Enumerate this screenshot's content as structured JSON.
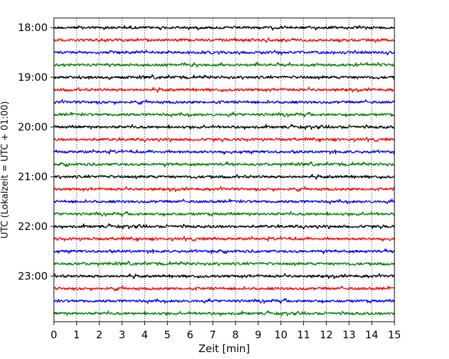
{
  "chart_data": {
    "type": "line",
    "title": "",
    "xlabel": "Zeit  [min]",
    "ylabel": "UTC (Lokalzeit = UTC + 01:00)",
    "xlim": [
      0,
      15
    ],
    "x_ticks": [
      "0",
      "1",
      "2",
      "3",
      "4",
      "5",
      "6",
      "7",
      "8",
      "9",
      "10",
      "11",
      "12",
      "13",
      "14",
      "15"
    ],
    "y_tick_labels": [
      "18:00",
      "19:00",
      "20:00",
      "21:00",
      "22:00",
      "23:00"
    ],
    "grid": "vertical dotted lines at each minute",
    "legend": "none",
    "series_colors": [
      "#000000",
      "#ff0000",
      "#0000ff",
      "#008000"
    ],
    "series": [
      {
        "start": "18:00",
        "color": "#000000"
      },
      {
        "start": "18:15",
        "color": "#ff0000"
      },
      {
        "start": "18:30",
        "color": "#0000ff"
      },
      {
        "start": "18:45",
        "color": "#008000"
      },
      {
        "start": "19:00",
        "color": "#000000"
      },
      {
        "start": "19:15",
        "color": "#ff0000"
      },
      {
        "start": "19:30",
        "color": "#0000ff"
      },
      {
        "start": "19:45",
        "color": "#008000"
      },
      {
        "start": "20:00",
        "color": "#000000"
      },
      {
        "start": "20:15",
        "color": "#ff0000"
      },
      {
        "start": "20:30",
        "color": "#0000ff"
      },
      {
        "start": "20:45",
        "color": "#008000"
      },
      {
        "start": "21:00",
        "color": "#000000"
      },
      {
        "start": "21:15",
        "color": "#ff0000"
      },
      {
        "start": "21:30",
        "color": "#0000ff"
      },
      {
        "start": "21:45",
        "color": "#008000"
      },
      {
        "start": "22:00",
        "color": "#000000"
      },
      {
        "start": "22:15",
        "color": "#ff0000"
      },
      {
        "start": "22:30",
        "color": "#0000ff"
      },
      {
        "start": "22:45",
        "color": "#008000"
      },
      {
        "start": "23:00",
        "color": "#000000"
      },
      {
        "start": "23:15",
        "color": "#ff0000"
      },
      {
        "start": "23:30",
        "color": "#0000ff"
      },
      {
        "start": "23:45",
        "color": "#008000"
      }
    ]
  }
}
